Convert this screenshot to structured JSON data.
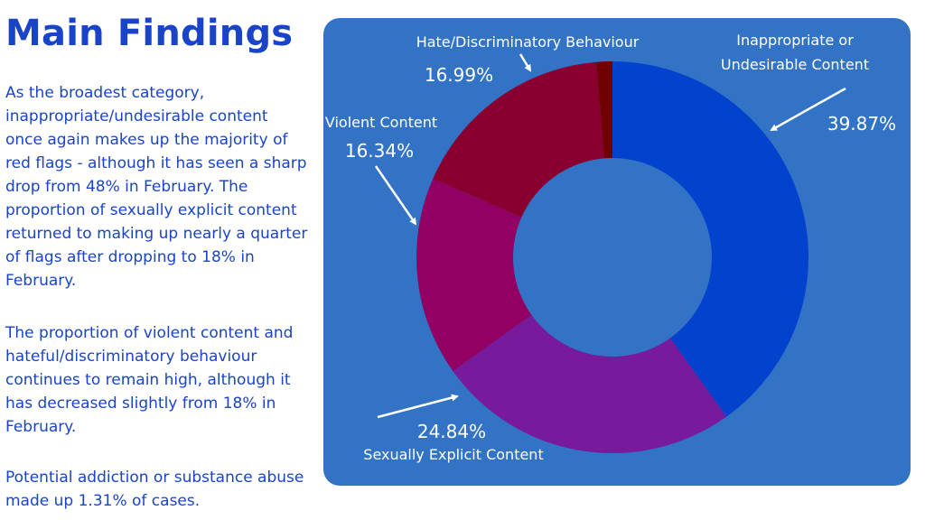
{
  "text": {
    "title": "Main Findings",
    "paragraphs": [
      "As the broadest category, inappropriate/undesirable content once again makes up the majority of red flags - although it has seen a sharp drop from 48% in February. The proportion of sexually explicit content returned to making up nearly a quarter of flags after dropping to 18% in February.",
      "The proportion of violent content and hateful/discriminatory behaviour continues to remain high, although it has decreased slightly from 18% in February.",
      "Potential addiction or substance abuse made up 1.31% of cases."
    ]
  },
  "chart_data": {
    "type": "pie",
    "donut": true,
    "slices": [
      {
        "label_lines": [
          "Inappropriate or",
          "Undesirable Content"
        ],
        "value": 39.87,
        "value_label": "39.87%",
        "color": "#0342cd"
      },
      {
        "label_lines": [
          "Sexually Explicit Content"
        ],
        "value": 24.84,
        "value_label": "24.84%",
        "color": "#771a9c"
      },
      {
        "label_lines": [
          "Violent Content"
        ],
        "value": 16.34,
        "value_label": "16.34%",
        "color": "#920064"
      },
      {
        "label_lines": [
          "Hate/Discriminatory Behaviour"
        ],
        "value": 16.99,
        "value_label": "16.99%",
        "color": "#890030"
      },
      {
        "label_lines": [],
        "value": 1.31,
        "value_label": "",
        "color": "#720000"
      }
    ],
    "panel_color": "#3273c6",
    "label_color": "#ffffff"
  }
}
